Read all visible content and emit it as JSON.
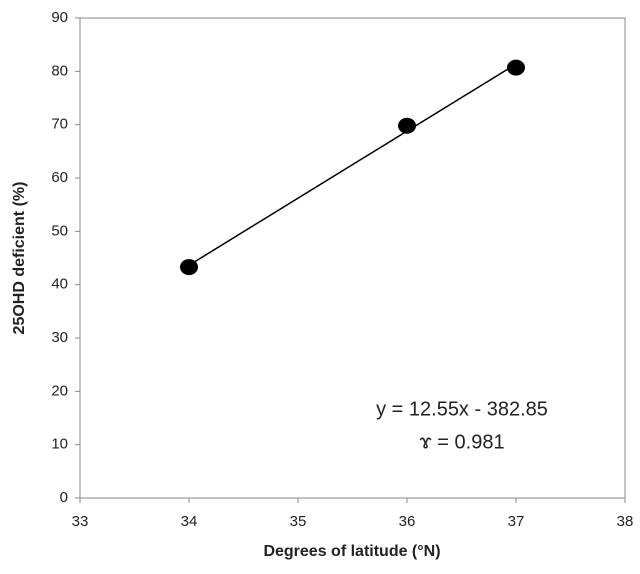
{
  "chart_data": {
    "type": "scatter",
    "x_label": "Degrees of latitude (°N)",
    "y_label": "25OHD deficient (%)",
    "x": [
      34,
      36,
      37
    ],
    "values": [
      43.3,
      69.8,
      80.7
    ],
    "color": "#000000",
    "xlim": [
      33,
      38
    ],
    "xticks": [
      33,
      34,
      35,
      36,
      37,
      38
    ],
    "ylim": [
      0,
      90
    ],
    "yticks": [
      0,
      10,
      20,
      30,
      40,
      50,
      60,
      70,
      80,
      90
    ],
    "trendline": true,
    "grid": false,
    "annotations": [
      "y = 12.55x - 382.85",
      "ɤ = 0.981"
    ]
  }
}
